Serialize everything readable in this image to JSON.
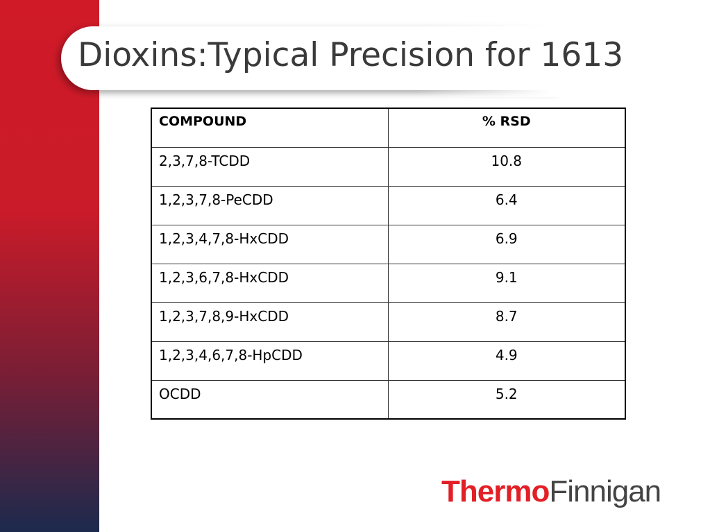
{
  "header": {
    "title": "Dioxins:Typical Precision for 1613"
  },
  "table": {
    "columns": [
      "COMPOUND",
      "% RSD"
    ],
    "rows": [
      [
        "2,3,7,8-TCDD",
        10.8
      ],
      [
        "1,2,3,7,8-PeCDD",
        6.4
      ],
      [
        "1,2,3,4,7,8-HxCDD",
        6.9
      ],
      [
        "1,2,3,6,7,8-HxCDD",
        9.1
      ],
      [
        "1,2,3,7,8,9-HxCDD",
        8.7
      ],
      [
        "1,2,3,4,6,7,8-HpCDD",
        4.9
      ],
      [
        "OCDD",
        5.2
      ]
    ]
  },
  "logo": {
    "brand": "Thermo",
    "name": "Finnigan"
  }
}
